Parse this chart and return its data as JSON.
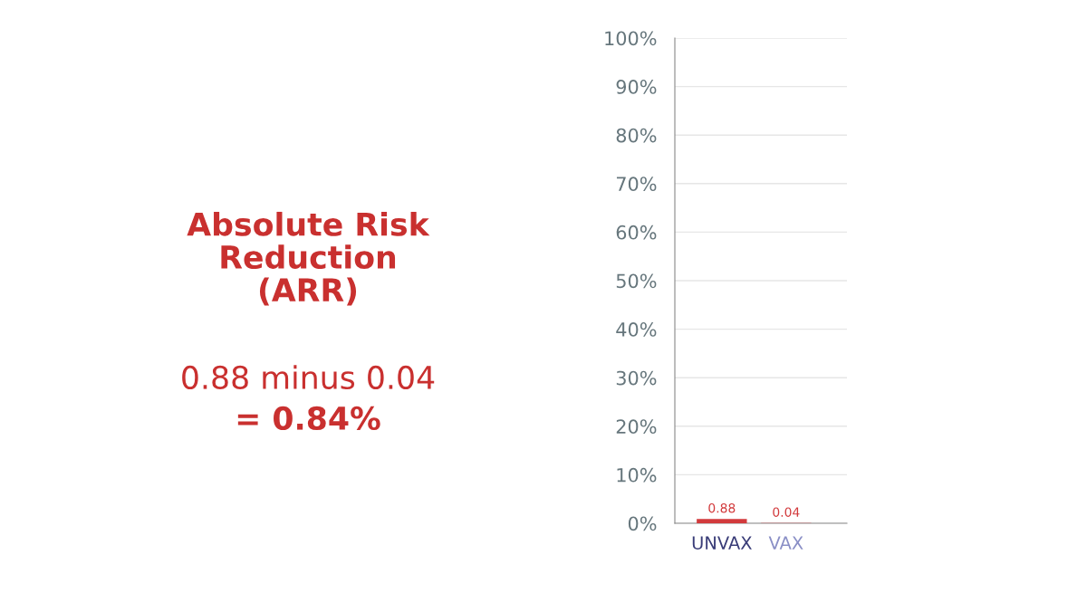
{
  "chart_data": {
    "type": "bar",
    "title": "Absolute Risk\nReduction\n(ARR)",
    "annotations": [
      "0.88 minus 0.04",
      "= 0.84%"
    ],
    "categories": [
      "UNVAX",
      "VAX"
    ],
    "values": [
      0.88,
      0.04
    ],
    "color": "#d23a3c",
    "data_labels": true,
    "ylim": [
      0,
      100
    ],
    "yticks": [
      {
        "value": 0,
        "label": "0%"
      },
      {
        "value": 10,
        "label": "10%"
      },
      {
        "value": 20,
        "label": "20%"
      },
      {
        "value": 30,
        "label": "30%"
      },
      {
        "value": 40,
        "label": "40%"
      },
      {
        "value": 50,
        "label": "50%"
      },
      {
        "value": 60,
        "label": "60%"
      },
      {
        "value": 70,
        "label": "70%"
      },
      {
        "value": 80,
        "label": "80%"
      },
      {
        "value": 90,
        "label": "90%"
      },
      {
        "value": 100,
        "label": "100%"
      }
    ],
    "grid": "y",
    "legend": false
  }
}
